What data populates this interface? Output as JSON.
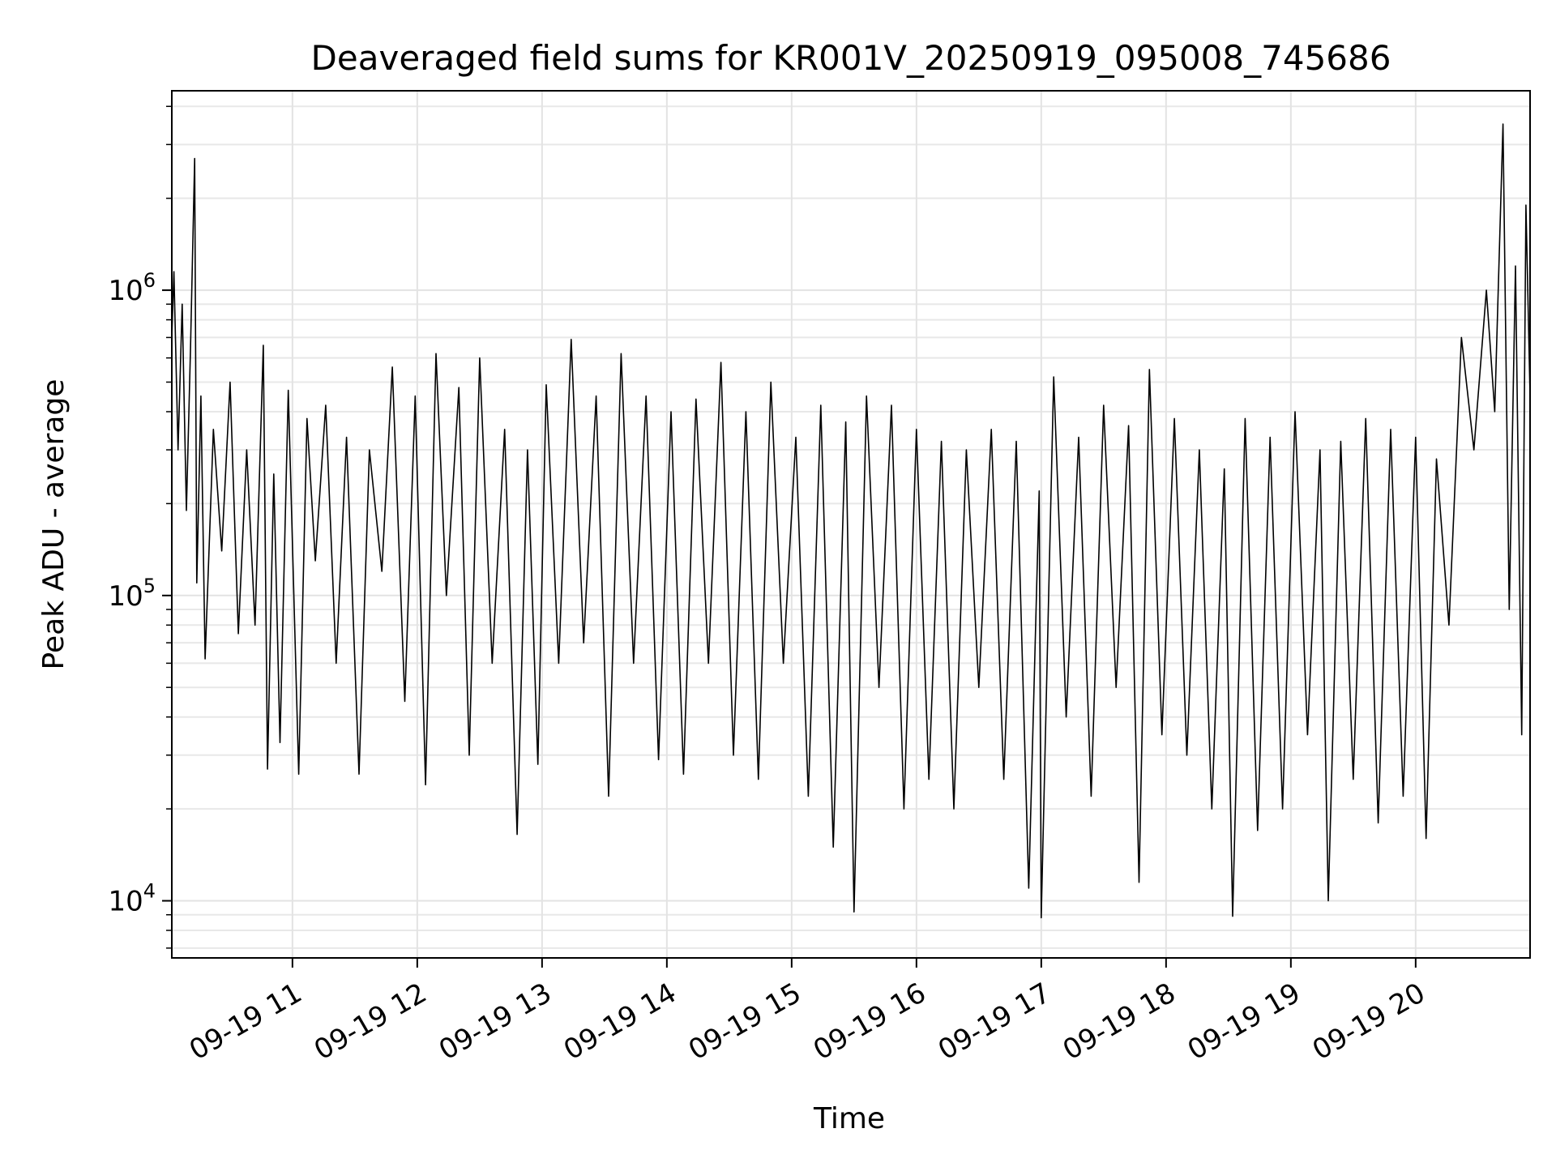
{
  "chart_data": {
    "type": "line",
    "title": "Deaveraged field sums for KR001V_20250919_095008_745686",
    "xlabel": "Time",
    "ylabel": "Peak ADU - average",
    "x_range": [
      "2025-09-19 10:02",
      "2025-09-19 20:55"
    ],
    "y_scale": "log",
    "ylim": [
      6500,
      4500000
    ],
    "grid": true,
    "x_ticks": [
      {
        "value": "2025-09-19 11:00",
        "label": "09-19 11"
      },
      {
        "value": "2025-09-19 12:00",
        "label": "09-19 12"
      },
      {
        "value": "2025-09-19 13:00",
        "label": "09-19 13"
      },
      {
        "value": "2025-09-19 14:00",
        "label": "09-19 14"
      },
      {
        "value": "2025-09-19 15:00",
        "label": "09-19 15"
      },
      {
        "value": "2025-09-19 16:00",
        "label": "09-19 16"
      },
      {
        "value": "2025-09-19 17:00",
        "label": "09-19 17"
      },
      {
        "value": "2025-09-19 18:00",
        "label": "09-19 18"
      },
      {
        "value": "2025-09-19 19:00",
        "label": "09-19 19"
      },
      {
        "value": "2025-09-19 20:00",
        "label": "09-19 20"
      }
    ],
    "y_ticks": [
      {
        "value": 10000,
        "base": "10",
        "exp": "4"
      },
      {
        "value": 100000,
        "base": "10",
        "exp": "5"
      },
      {
        "value": 1000000,
        "base": "10",
        "exp": "6"
      }
    ],
    "series": [
      {
        "color": "#000000",
        "points": [
          [
            "10:02",
            700000
          ],
          [
            "10:03",
            1150000
          ],
          [
            "10:05",
            300000
          ],
          [
            "10:07",
            900000
          ],
          [
            "10:09",
            190000
          ],
          [
            "10:11",
            650000
          ],
          [
            "10:13",
            2700000
          ],
          [
            "10:14",
            110000
          ],
          [
            "10:16",
            450000
          ],
          [
            "10:18",
            62000
          ],
          [
            "10:22",
            350000
          ],
          [
            "10:26",
            140000
          ],
          [
            "10:30",
            500000
          ],
          [
            "10:34",
            75000
          ],
          [
            "10:38",
            300000
          ],
          [
            "10:42",
            80000
          ],
          [
            "10:46",
            660000
          ],
          [
            "10:48",
            27000
          ],
          [
            "10:51",
            250000
          ],
          [
            "10:54",
            33000
          ],
          [
            "10:58",
            470000
          ],
          [
            "11:03",
            26000
          ],
          [
            "11:07",
            380000
          ],
          [
            "11:11",
            130000
          ],
          [
            "11:16",
            420000
          ],
          [
            "11:21",
            60000
          ],
          [
            "11:26",
            330000
          ],
          [
            "11:32",
            26000
          ],
          [
            "11:37",
            300000
          ],
          [
            "11:43",
            120000
          ],
          [
            "11:48",
            560000
          ],
          [
            "11:54",
            45000
          ],
          [
            "11:59",
            450000
          ],
          [
            "12:04",
            24000
          ],
          [
            "12:09",
            620000
          ],
          [
            "12:14",
            100000
          ],
          [
            "12:20",
            480000
          ],
          [
            "12:25",
            30000
          ],
          [
            "12:30",
            600000
          ],
          [
            "12:36",
            60000
          ],
          [
            "12:42",
            350000
          ],
          [
            "12:48",
            16500
          ],
          [
            "12:53",
            300000
          ],
          [
            "12:58",
            28000
          ],
          [
            "13:02",
            490000
          ],
          [
            "13:08",
            60000
          ],
          [
            "13:14",
            690000
          ],
          [
            "13:20",
            70000
          ],
          [
            "13:26",
            450000
          ],
          [
            "13:32",
            22000
          ],
          [
            "13:38",
            620000
          ],
          [
            "13:44",
            60000
          ],
          [
            "13:50",
            450000
          ],
          [
            "13:56",
            29000
          ],
          [
            "14:02",
            400000
          ],
          [
            "14:08",
            26000
          ],
          [
            "14:14",
            440000
          ],
          [
            "14:20",
            60000
          ],
          [
            "14:26",
            580000
          ],
          [
            "14:32",
            30000
          ],
          [
            "14:38",
            400000
          ],
          [
            "14:44",
            25000
          ],
          [
            "14:50",
            500000
          ],
          [
            "14:56",
            60000
          ],
          [
            "15:02",
            330000
          ],
          [
            "15:08",
            22000
          ],
          [
            "15:14",
            420000
          ],
          [
            "15:20",
            15000
          ],
          [
            "15:26",
            370000
          ],
          [
            "15:30",
            9200
          ],
          [
            "15:36",
            450000
          ],
          [
            "15:42",
            50000
          ],
          [
            "15:48",
            420000
          ],
          [
            "15:54",
            20000
          ],
          [
            "16:00",
            350000
          ],
          [
            "16:06",
            25000
          ],
          [
            "16:12",
            320000
          ],
          [
            "16:18",
            20000
          ],
          [
            "16:24",
            300000
          ],
          [
            "16:30",
            50000
          ],
          [
            "16:36",
            350000
          ],
          [
            "16:42",
            25000
          ],
          [
            "16:48",
            320000
          ],
          [
            "16:54",
            11000
          ],
          [
            "16:59",
            220000
          ],
          [
            "17:00",
            8800
          ],
          [
            "17:06",
            520000
          ],
          [
            "17:12",
            40000
          ],
          [
            "17:18",
            330000
          ],
          [
            "17:24",
            22000
          ],
          [
            "17:30",
            420000
          ],
          [
            "17:36",
            50000
          ],
          [
            "17:42",
            360000
          ],
          [
            "17:47",
            11500
          ],
          [
            "17:52",
            550000
          ],
          [
            "17:58",
            35000
          ],
          [
            "18:04",
            380000
          ],
          [
            "18:10",
            30000
          ],
          [
            "18:16",
            300000
          ],
          [
            "18:22",
            20000
          ],
          [
            "18:28",
            260000
          ],
          [
            "18:32",
            8900
          ],
          [
            "18:38",
            380000
          ],
          [
            "18:44",
            17000
          ],
          [
            "18:50",
            330000
          ],
          [
            "18:56",
            20000
          ],
          [
            "19:02",
            400000
          ],
          [
            "19:08",
            35000
          ],
          [
            "19:14",
            300000
          ],
          [
            "19:18",
            10000
          ],
          [
            "19:24",
            320000
          ],
          [
            "19:30",
            25000
          ],
          [
            "19:36",
            380000
          ],
          [
            "19:42",
            18000
          ],
          [
            "19:48",
            350000
          ],
          [
            "19:54",
            22000
          ],
          [
            "20:00",
            330000
          ],
          [
            "20:05",
            16000
          ],
          [
            "20:10",
            280000
          ],
          [
            "20:16",
            80000
          ],
          [
            "20:22",
            700000
          ],
          [
            "20:28",
            300000
          ],
          [
            "20:34",
            1000000
          ],
          [
            "20:38",
            400000
          ],
          [
            "20:42",
            3500000
          ],
          [
            "20:45",
            90000
          ],
          [
            "20:48",
            1200000
          ],
          [
            "20:51",
            35000
          ],
          [
            "20:53",
            1900000
          ],
          [
            "20:55",
            450000
          ]
        ]
      }
    ]
  }
}
